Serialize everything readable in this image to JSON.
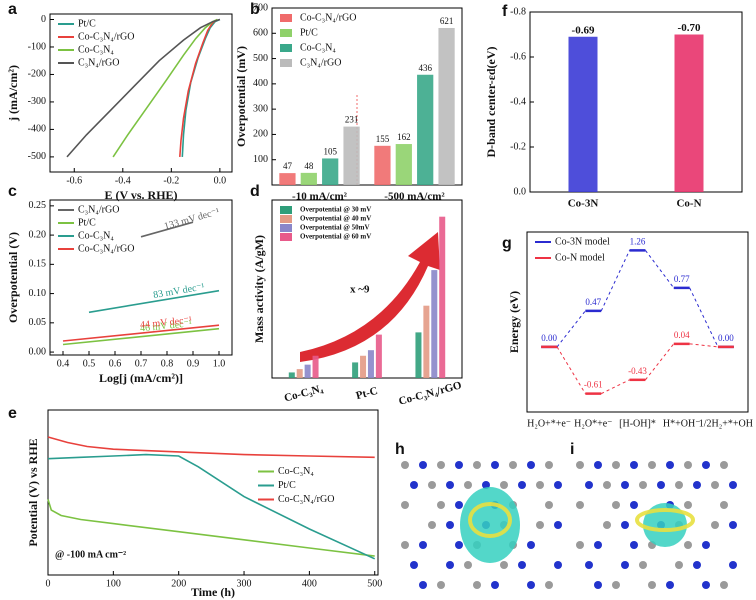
{
  "chart_data": [
    {
      "type": "line",
      "panel": "a",
      "xlabel": "E (V vs. RHE)",
      "ylabel": "j (mA/cm²)",
      "xlim": [
        -0.7,
        0.05
      ],
      "xticks": [
        -0.6,
        -0.4,
        -0.2,
        {
          "value": 0,
          "label": "0.0"
        }
      ],
      "ylim": [
        -555,
        20
      ],
      "yticks": [
        0,
        -100,
        -200,
        -300,
        -400,
        -500
      ],
      "legend": "upper left",
      "series": [
        {
          "name": "Pt/C",
          "color": "#2a9d8f",
          "x": [
            -0.155,
            -0.15,
            -0.14,
            -0.12,
            -0.09,
            -0.06,
            -0.04,
            -0.02,
            0.0
          ],
          "values": [
            -500,
            -420,
            -330,
            -230,
            -140,
            -70,
            -30,
            -8,
            0
          ]
        },
        {
          "name": "Co-C₃N₄/rGO",
          "color": "#e8413c",
          "x": [
            -0.165,
            -0.16,
            -0.15,
            -0.13,
            -0.1,
            -0.07,
            -0.05,
            -0.03,
            -0.01
          ],
          "values": [
            -500,
            -440,
            -360,
            -260,
            -160,
            -85,
            -40,
            -12,
            0
          ]
        },
        {
          "name": "Co-C₃N₄",
          "color": "#7cc242",
          "x": [
            -0.44,
            -0.38,
            -0.3,
            -0.22,
            -0.15,
            -0.1,
            -0.06,
            -0.03,
            -0.01
          ],
          "values": [
            -500,
            -420,
            -320,
            -220,
            -130,
            -70,
            -30,
            -8,
            0
          ]
        },
        {
          "name": "C₃N₄/rGO",
          "color": "#555555",
          "x": [
            -0.63,
            -0.55,
            -0.45,
            -0.35,
            -0.25,
            -0.15,
            -0.08,
            -0.03,
            0.0
          ],
          "values": [
            -500,
            -420,
            -330,
            -240,
            -150,
            -75,
            -30,
            -8,
            0
          ]
        }
      ]
    },
    {
      "type": "bar",
      "panel": "b",
      "ylabel": "Overpotential (mV)",
      "categories": [
        "-10 mA/cm²",
        "-500 mA/cm²"
      ],
      "ylim": [
        0,
        700
      ],
      "yticks": [
        100,
        200,
        300,
        400,
        500,
        600,
        700
      ],
      "legend": "upper left",
      "show_values": true,
      "series": [
        {
          "name": "Co-C₃N₄/rGO",
          "color": "#f06b6b",
          "values": [
            47,
            155
          ]
        },
        {
          "name": "Pt/C",
          "color": "#8fd16a",
          "values": [
            48,
            162
          ]
        },
        {
          "name": "Co-C₃N₄",
          "color": "#3aa88a",
          "values": [
            105,
            436
          ]
        },
        {
          "name": "C₃N₄/rGO",
          "color": "#bbbbbb",
          "values": [
            231,
            621
          ]
        }
      ]
    },
    {
      "type": "line",
      "panel": "c",
      "xlabel": "Log[j (mA/cm²)]",
      "ylabel": "Overpotential (V)",
      "xlim": [
        0.35,
        1.05
      ],
      "xticks": [
        0.4,
        0.5,
        0.6,
        0.7,
        0.8,
        0.9,
        {
          "value": 1,
          "label": "1.0"
        }
      ],
      "ylim": [
        -0.005,
        0.26
      ],
      "yticks": [
        {
          "value": 0,
          "label": "0.00"
        },
        0.05,
        {
          "value": 0.1,
          "label": "0.10"
        },
        0.15,
        {
          "value": 0.2,
          "label": "0.20"
        },
        0.25
      ],
      "legend": "upper left",
      "series": [
        {
          "name": "C₃N₄/rGO",
          "color": "#666666",
          "x": [
            0.7,
            0.9
          ],
          "values": [
            0.197,
            0.222
          ],
          "annotation": "133 mV dec⁻¹"
        },
        {
          "name": "Pt/C",
          "color": "#7cc242",
          "x": [
            0.4,
            1.0
          ],
          "values": [
            0.013,
            0.04
          ],
          "annotation": "46 mV dec⁻¹"
        },
        {
          "name": "Co-C₃N₄",
          "color": "#2a9d8f",
          "x": [
            0.5,
            1.0
          ],
          "values": [
            0.068,
            0.105
          ],
          "annotation": "83 mV dec⁻¹"
        },
        {
          "name": "Co-C₃N₄/rGO",
          "color": "#e8413c",
          "x": [
            0.4,
            1.0
          ],
          "values": [
            0.019,
            0.046
          ],
          "annotation": "44 mV dec⁻¹"
        }
      ]
    },
    {
      "type": "bar",
      "panel": "d",
      "ylabel": "Mass activity (A/gM)",
      "categories": [
        "Co-C₃N₄",
        "Pt-C",
        "Co-C₃N₄/rGO"
      ],
      "ylim": [
        0,
        160
      ],
      "legend": "upper left",
      "annotation": "x ~9",
      "series": [
        {
          "name": "Overpotential @ 30 mV",
          "color": "#2f9e7a",
          "values": [
            5,
            14,
            41
          ]
        },
        {
          "name": "Overpotential @ 40 mV",
          "color": "#e39a85",
          "values": [
            8,
            20,
            65
          ]
        },
        {
          "name": "Overpotential @ 50mV",
          "color": "#8a86c9",
          "values": [
            12,
            25,
            97
          ]
        },
        {
          "name": "Overpotential @ 60 mV",
          "color": "#e85a8a",
          "values": [
            20,
            39,
            145
          ]
        }
      ]
    },
    {
      "type": "line",
      "panel": "e",
      "xlabel": "Time (h)",
      "ylabel": "Potential (V) vs RHE",
      "xlim": [
        0,
        505
      ],
      "xticks": [
        0,
        100,
        200,
        300,
        400,
        500
      ],
      "ylim": [
        -0.55,
        0.06
      ],
      "legend": "center right",
      "annotation": "@ -100 mA cm⁻²",
      "series": [
        {
          "name": "Co-C₃N₄",
          "color": "#7cc242",
          "x": [
            0,
            5,
            20,
            50,
            100,
            200,
            300,
            400,
            500
          ],
          "values": [
            -0.27,
            -0.31,
            -0.33,
            -0.345,
            -0.36,
            -0.39,
            -0.42,
            -0.45,
            -0.48
          ]
        },
        {
          "name": "Pt/C",
          "color": "#2a9d8f",
          "x": [
            0,
            50,
            100,
            150,
            200,
            230,
            300,
            400,
            500
          ],
          "values": [
            -0.12,
            -0.115,
            -0.11,
            -0.105,
            -0.11,
            -0.15,
            -0.26,
            -0.38,
            -0.49
          ]
        },
        {
          "name": "Co-C₃N₄/rGO",
          "color": "#e8413c",
          "x": [
            0,
            30,
            60,
            100,
            200,
            300,
            400,
            500
          ],
          "values": [
            -0.04,
            -0.06,
            -0.075,
            -0.085,
            -0.095,
            -0.105,
            -0.11,
            -0.115
          ]
        }
      ]
    },
    {
      "type": "bar",
      "panel": "f",
      "ylabel": "D-band center-εd(eV)",
      "categories": [
        "Co-3N",
        "Co-N"
      ],
      "values": [
        -0.69,
        -0.7
      ],
      "value_labels": [
        "-0.69",
        "-0.70"
      ],
      "colors": [
        "#3b3bd6",
        "#e8336b"
      ],
      "ylim": [
        0,
        -0.8
      ],
      "yticks": [
        {
          "value": 0,
          "label": "0.0"
        },
        -0.2,
        -0.4,
        -0.6,
        -0.8
      ]
    },
    {
      "type": "energy",
      "panel": "g",
      "ylabel": "Energy (eV)",
      "categories": [
        "H₂O+*+e⁻",
        "H₂O*+e⁻",
        "[H-OH]*",
        "H*+OH⁻",
        "1/2H₂+*+OH"
      ],
      "ylim": [
        -0.85,
        1.5
      ],
      "legend": "upper left",
      "series": [
        {
          "name": "Co-3N model",
          "color": "#2b2bd0",
          "values": [
            0.0,
            0.47,
            1.26,
            0.77,
            0.0
          ],
          "value_labels": [
            "0.00",
            "0.47",
            "1.26",
            "0.77",
            "0.00"
          ]
        },
        {
          "name": "Co-N  model",
          "color": "#ee3344",
          "values": [
            0.0,
            -0.61,
            -0.43,
            0.04,
            0.0
          ],
          "value_labels": [
            null,
            "-0.61",
            "-0.43",
            "0.04",
            null
          ]
        }
      ]
    }
  ],
  "image_panels": [
    {
      "panel": "h"
    },
    {
      "panel": "i"
    }
  ]
}
